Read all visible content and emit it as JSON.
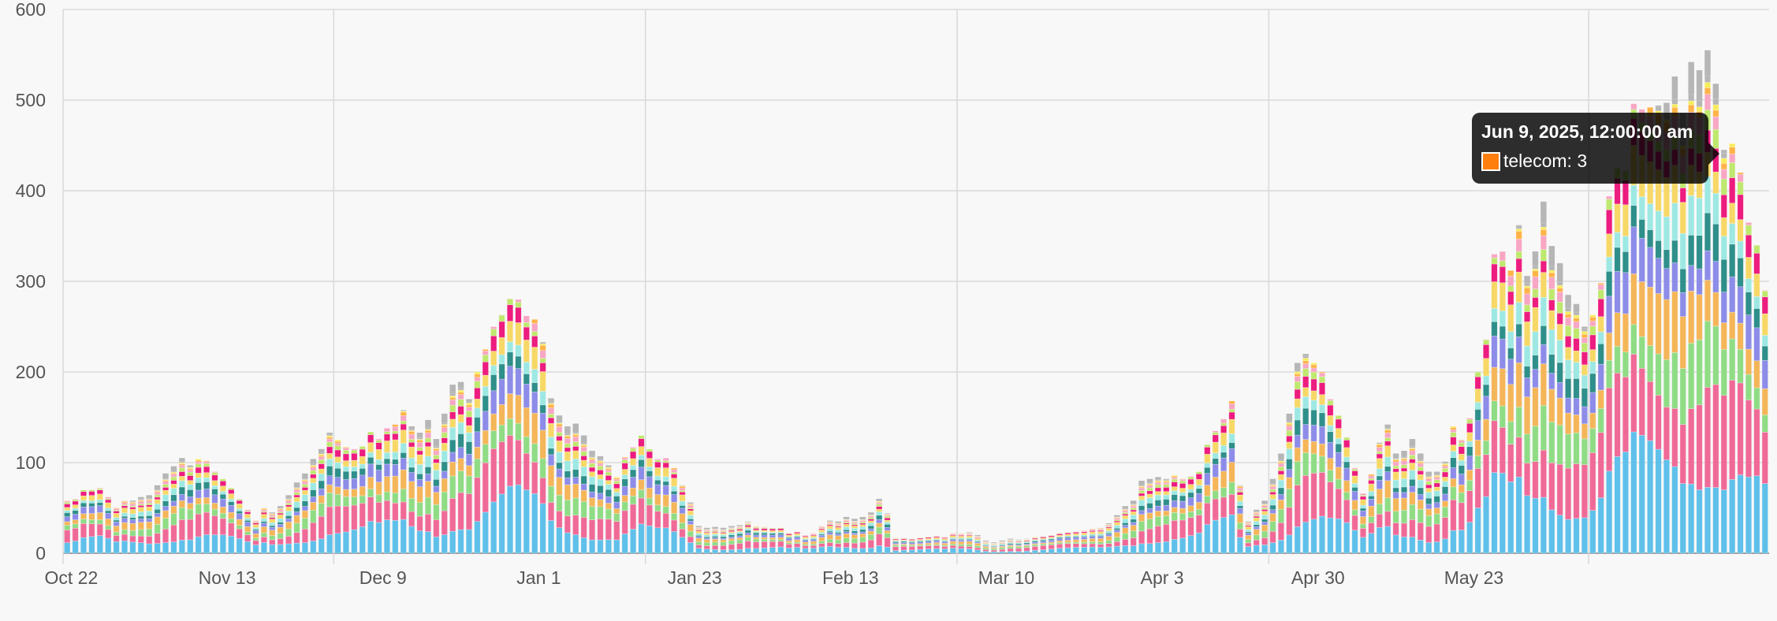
{
  "chart_data": {
    "type": "bar",
    "stacked": true,
    "grid": true,
    "ylim": [
      0,
      600
    ],
    "yticks": [
      0,
      100,
      200,
      300,
      400,
      500,
      600
    ],
    "x_tick_labels": [
      "Oct 22",
      "Nov 13",
      "Dec 9",
      "Jan 1",
      "Jan 23",
      "Feb 13",
      "Mar 10",
      "Apr 3",
      "Apr 30",
      "May 23"
    ],
    "segment_colors": [
      "#5fc0ea",
      "#f06a97",
      "#8fdc85",
      "#f4b659",
      "#8d8ce8",
      "#2f8f8a",
      "#9de8e3",
      "#f7d867",
      "#ed1c7f",
      "#bfe86e",
      "#f7a6c4",
      "#ffb347",
      "#f7ec5a",
      "#b6b6b6"
    ],
    "segment_shares": [
      0.2,
      0.18,
      0.1,
      0.1,
      0.08,
      0.06,
      0.06,
      0.07,
      0.05,
      0.03,
      0.03,
      0.02,
      0.01,
      0.01
    ],
    "totals": [
      58,
      60,
      70,
      70,
      72,
      62,
      50,
      58,
      58,
      62,
      64,
      75,
      88,
      96,
      105,
      97,
      104,
      102,
      90,
      82,
      72,
      60,
      48,
      36,
      50,
      45,
      52,
      64,
      78,
      88,
      104,
      115,
      133,
      125,
      117,
      115,
      118,
      134,
      126,
      138,
      142,
      158,
      140,
      133,
      147,
      126,
      154,
      186,
      189,
      170,
      200,
      225,
      250,
      263,
      281,
      280,
      262,
      258,
      233,
      171,
      152,
      140,
      143,
      130,
      113,
      107,
      97,
      84,
      106,
      117,
      130,
      115,
      104,
      105,
      94,
      75,
      56,
      30,
      28,
      29,
      28,
      30,
      31,
      35,
      30,
      29,
      28,
      28,
      22,
      24,
      20,
      22,
      30,
      36,
      35,
      40,
      38,
      40,
      45,
      60,
      44,
      17,
      17,
      16,
      17,
      18,
      19,
      18,
      22,
      22,
      23,
      20,
      14,
      12,
      14,
      16,
      15,
      16,
      18,
      19,
      20,
      22,
      23,
      24,
      25,
      27,
      28,
      33,
      42,
      52,
      58,
      80,
      82,
      84,
      82,
      86,
      82,
      85,
      90,
      120,
      135,
      148,
      168,
      75,
      35,
      48,
      58,
      82,
      110,
      154,
      210,
      220,
      210,
      200,
      170,
      152,
      128,
      94,
      66,
      87,
      122,
      142,
      110,
      113,
      126,
      110,
      90,
      90,
      101,
      140,
      125,
      149,
      200,
      236,
      330,
      333,
      312,
      362,
      306,
      333,
      388,
      339,
      320,
      285,
      275,
      250,
      263,
      298,
      394,
      425,
      422,
      496,
      490,
      492,
      494,
      497,
      526,
      485,
      542,
      533,
      555,
      518,
      445,
      452,
      420,
      365,
      340,
      290
    ],
    "tooltip": {
      "title": "Jun 9, 2025, 12:00:00 am",
      "series": "telecom",
      "value": 3,
      "text": "telecom: 3",
      "swatch_color": "#ff7f0e"
    }
  }
}
